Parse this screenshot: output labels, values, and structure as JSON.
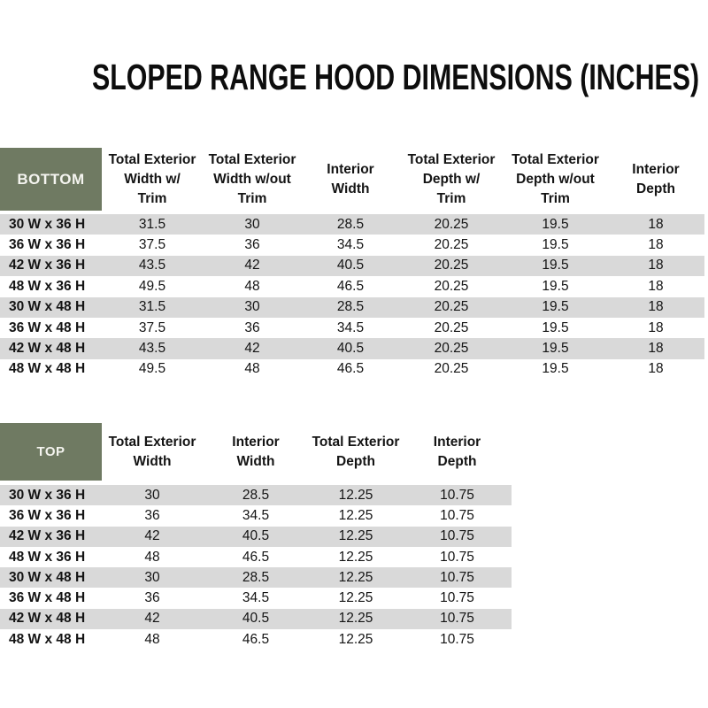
{
  "title": "SLOPED RANGE HOOD DIMENSIONS (INCHES)",
  "colors": {
    "header_cell_bg": "#6F7A62",
    "header_cell_text": "#F4F4EF",
    "row_stripe": "#D9D9D9"
  },
  "tables": {
    "bottom": {
      "corner_label": "BOTTOM",
      "column_headers": [
        "Total Exterior\nWidth w/\nTrim",
        "Total Exterior\nWidth w/out\nTrim",
        "Interior\nWidth",
        "Total Exterior\nDepth w/\nTrim",
        "Total Exterior\nDepth w/out\nTrim",
        "Interior\nDepth"
      ],
      "rows": [
        {
          "size": "30 W x 36 H",
          "values": [
            "31.5",
            "30",
            "28.5",
            "20.25",
            "19.5",
            "18"
          ]
        },
        {
          "size": "36 W x 36 H",
          "values": [
            "37.5",
            "36",
            "34.5",
            "20.25",
            "19.5",
            "18"
          ]
        },
        {
          "size": "42 W x 36 H",
          "values": [
            "43.5",
            "42",
            "40.5",
            "20.25",
            "19.5",
            "18"
          ]
        },
        {
          "size": "48 W x 36 H",
          "values": [
            "49.5",
            "48",
            "46.5",
            "20.25",
            "19.5",
            "18"
          ]
        },
        {
          "size": "30 W x 48 H",
          "values": [
            "31.5",
            "30",
            "28.5",
            "20.25",
            "19.5",
            "18"
          ]
        },
        {
          "size": "36 W x 48 H",
          "values": [
            "37.5",
            "36",
            "34.5",
            "20.25",
            "19.5",
            "18"
          ]
        },
        {
          "size": "42 W x 48 H",
          "values": [
            "43.5",
            "42",
            "40.5",
            "20.25",
            "19.5",
            "18"
          ]
        },
        {
          "size": "48 W x 48 H",
          "values": [
            "49.5",
            "48",
            "46.5",
            "20.25",
            "19.5",
            "18"
          ]
        }
      ]
    },
    "top": {
      "corner_label": "TOP",
      "column_headers": [
        "Total Exterior\nWidth",
        "Interior\nWidth",
        "Total Exterior\nDepth",
        "Interior\nDepth"
      ],
      "rows": [
        {
          "size": "30 W x 36 H",
          "values": [
            "30",
            "28.5",
            "12.25",
            "10.75"
          ]
        },
        {
          "size": "36 W x 36 H",
          "values": [
            "36",
            "34.5",
            "12.25",
            "10.75"
          ]
        },
        {
          "size": "42 W x 36 H",
          "values": [
            "42",
            "40.5",
            "12.25",
            "10.75"
          ]
        },
        {
          "size": "48 W x 36 H",
          "values": [
            "48",
            "46.5",
            "12.25",
            "10.75"
          ]
        },
        {
          "size": "30 W x 48 H",
          "values": [
            "30",
            "28.5",
            "12.25",
            "10.75"
          ]
        },
        {
          "size": "36 W x 48 H",
          "values": [
            "36",
            "34.5",
            "12.25",
            "10.75"
          ]
        },
        {
          "size": "42 W x 48 H",
          "values": [
            "42",
            "40.5",
            "12.25",
            "10.75"
          ]
        },
        {
          "size": "48 W x 48 H",
          "values": [
            "48",
            "46.5",
            "12.25",
            "10.75"
          ]
        }
      ]
    }
  }
}
